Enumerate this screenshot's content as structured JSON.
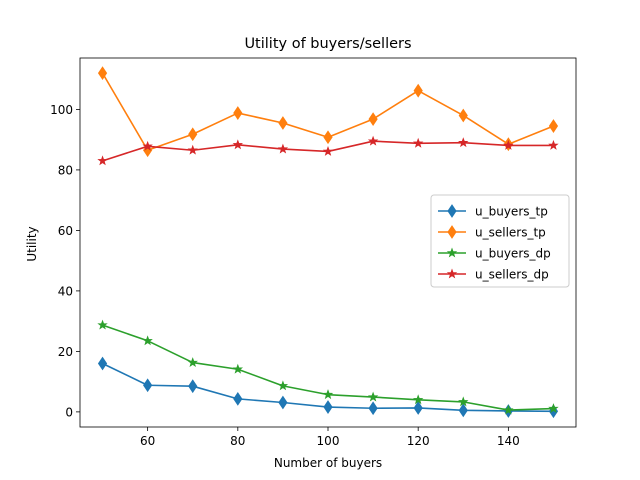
{
  "chart_data": {
    "type": "line",
    "title": "Utility of buyers/sellers",
    "xlabel": "Number of buyers",
    "ylabel": "Utility",
    "x": [
      50,
      60,
      70,
      80,
      90,
      100,
      110,
      120,
      130,
      140,
      150
    ],
    "xlim": [
      45,
      155
    ],
    "ylim": [
      -5,
      117
    ],
    "xticks": [
      60,
      80,
      100,
      120,
      140
    ],
    "yticks": [
      0,
      20,
      40,
      60,
      80,
      100
    ],
    "grid": false,
    "legend_position": "center-right",
    "series": [
      {
        "name": "u_buyers_tp",
        "color": "#1f77b4",
        "marker": "diamond",
        "values": [
          16.0,
          8.8,
          8.5,
          4.3,
          3.1,
          1.6,
          1.2,
          1.3,
          0.5,
          0.3,
          0.2
        ]
      },
      {
        "name": "u_sellers_tp",
        "color": "#ff7f0e",
        "marker": "diamond",
        "values": [
          112.0,
          86.5,
          91.8,
          98.8,
          95.5,
          90.8,
          96.8,
          106.2,
          98.0,
          88.5,
          94.5
        ]
      },
      {
        "name": "u_buyers_dp",
        "color": "#2ca02c",
        "marker": "star",
        "values": [
          28.7,
          23.5,
          16.3,
          14.1,
          8.6,
          5.7,
          4.9,
          4.0,
          3.3,
          0.6,
          1.1
        ]
      },
      {
        "name": "u_sellers_dp",
        "color": "#d62728",
        "marker": "star",
        "values": [
          83.0,
          87.8,
          86.5,
          88.3,
          86.9,
          86.1,
          89.5,
          88.8,
          89.0,
          88.1,
          88.1
        ]
      }
    ]
  }
}
